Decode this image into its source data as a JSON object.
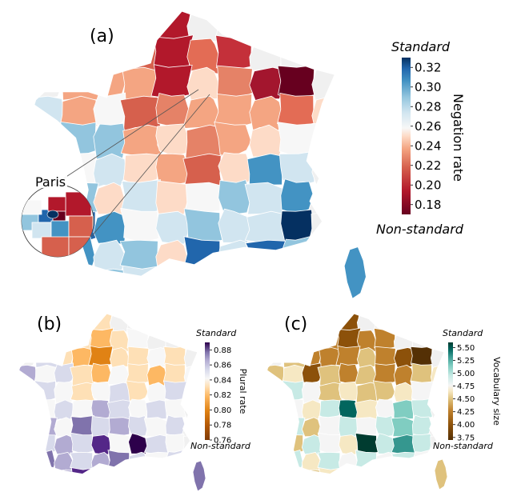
{
  "panels": [
    {
      "id": "a",
      "label": "(a)",
      "colorbar": {
        "top_title": "Standard",
        "bottom_title": "Non-standard",
        "axis_label": "Negation rate",
        "ticks": [
          "0.32",
          "0.30",
          "0.28",
          "0.26",
          "0.24",
          "0.22",
          "0.20",
          "0.18"
        ],
        "colormap": "RdBu",
        "range": [
          0.17,
          0.33
        ]
      },
      "inset": {
        "label": "Paris"
      }
    },
    {
      "id": "b",
      "label": "(b)",
      "colorbar": {
        "top_title": "Standard",
        "bottom_title": "Non-standard",
        "axis_label": "Plural rate",
        "ticks": [
          "0.88",
          "0.86",
          "0.84",
          "0.82",
          "0.80",
          "0.78",
          "0.76"
        ],
        "colormap": "PuOr",
        "range": [
          0.76,
          0.89
        ]
      }
    },
    {
      "id": "c",
      "label": "(c)",
      "colorbar": {
        "top_title": "Standard",
        "bottom_title": "Non-standard",
        "axis_label": "Vocabulary size",
        "ticks": [
          "5.50",
          "5.25",
          "5.00",
          "4.75",
          "4.50",
          "4.25",
          "4.00",
          "3.75"
        ],
        "colormap": "BrBG",
        "range": [
          3.7,
          5.6
        ]
      }
    }
  ]
}
